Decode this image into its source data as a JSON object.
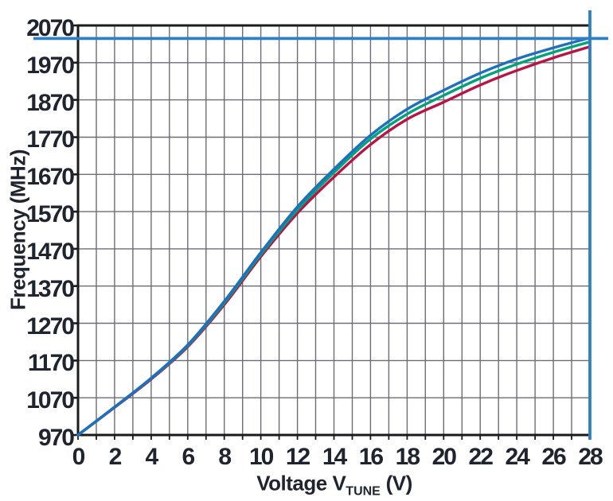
{
  "figure": {
    "background_color": "#ffffff",
    "text_color": "#20242f",
    "grid_color": "#6d6d76",
    "axis_color": "#1b1b1d",
    "reference_color": "#2e80c6"
  },
  "chart_data": {
    "type": "line",
    "title": "",
    "xlabel": "Voltage VTUNE (V)",
    "xlabel_parts": {
      "prefix": "Voltage V",
      "sub": "TUNE",
      "suffix": " (V)"
    },
    "ylabel": "Frequency (MHz)",
    "xlim": [
      0,
      28
    ],
    "ylim": [
      970,
      2070
    ],
    "x_tick_labels": [
      0,
      2,
      4,
      6,
      8,
      10,
      12,
      14,
      16,
      18,
      20,
      22,
      24,
      26,
      28
    ],
    "y_tick_labels": [
      970,
      1070,
      1170,
      1270,
      1370,
      1470,
      1570,
      1670,
      1770,
      1870,
      1970,
      2070
    ],
    "x_gridline_step": 1,
    "y_gridline_step": 100,
    "grid": true,
    "legend": "none",
    "x": [
      0,
      2,
      4,
      6,
      8,
      10,
      12,
      14,
      16,
      18,
      20,
      22,
      24,
      26,
      28
    ],
    "series": [
      {
        "name": "lower-curve-red",
        "color": "#ba1345",
        "values": [
          970,
          1044,
          1120,
          1207,
          1320,
          1449,
          1566,
          1663,
          1750,
          1818,
          1864,
          1910,
          1949,
          1983,
          2013
        ]
      },
      {
        "name": "middle-curve-green",
        "color": "#00a37b",
        "values": [
          970,
          1045,
          1122,
          1210,
          1325,
          1455,
          1575,
          1675,
          1765,
          1832,
          1882,
          1928,
          1966,
          1998,
          2026
        ]
      },
      {
        "name": "upper-curve-blue",
        "color": "#1e6fbf",
        "values": [
          970,
          1045,
          1123,
          1212,
          1329,
          1460,
          1583,
          1684,
          1775,
          1845,
          1896,
          1942,
          1980,
          2010,
          2037
        ]
      }
    ],
    "reference_lines": [
      {
        "name": "max-frequency-line",
        "orientation": "horizontal",
        "value": 2035,
        "color": "#2e80c6"
      },
      {
        "name": "max-voltage-line",
        "orientation": "vertical",
        "value": 28,
        "color": "#2e80c6"
      }
    ]
  }
}
